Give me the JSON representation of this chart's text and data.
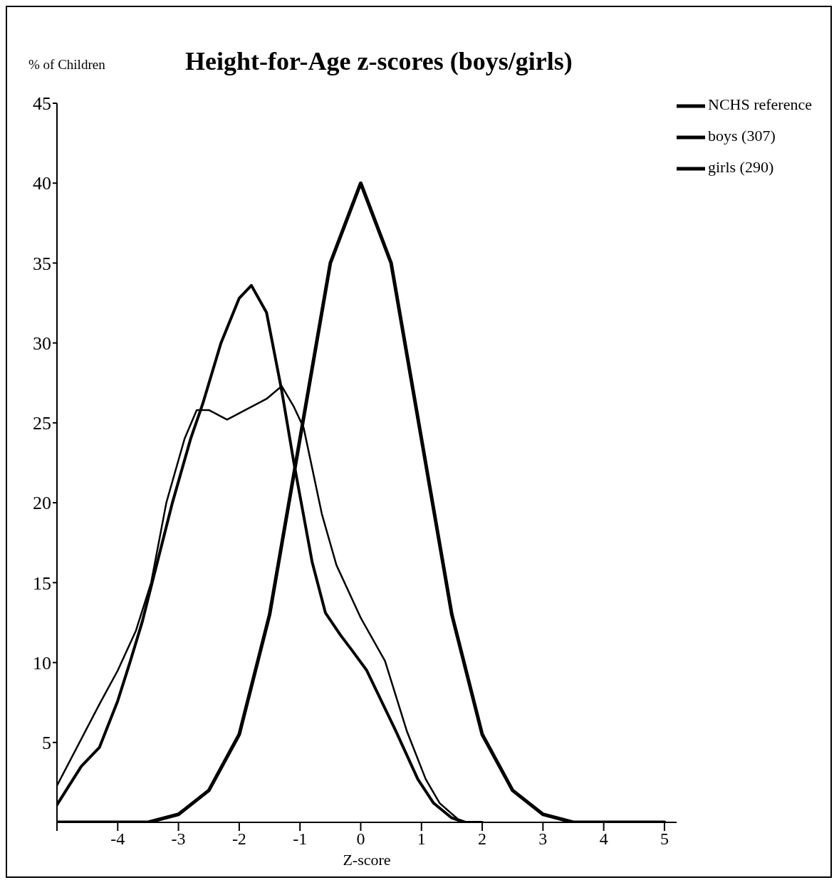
{
  "chart_data": {
    "type": "line",
    "title": "Height-for-Age z-scores (boys/girls)",
    "ylabel": "% of Children",
    "xlabel": "Z-score",
    "xlim": [
      -5,
      5.2
    ],
    "xticks": [
      {
        "value": -5,
        "label": null
      },
      -4,
      -3,
      -2,
      -1,
      0,
      1,
      2,
      3,
      4,
      5
    ],
    "ylim": [
      0,
      45
    ],
    "yticks": [
      5,
      10,
      15,
      20,
      25,
      30,
      35,
      40,
      45
    ],
    "legend": "top right",
    "grid": false,
    "marker": "none",
    "line_style": "solid",
    "series": [
      {
        "name": "NCHS reference",
        "color": "#000000",
        "x": [
          -5,
          -4.5,
          -4,
          -3.5,
          -3,
          -2.5,
          -2,
          -1.5,
          -1,
          -0.5,
          0,
          0.5,
          1,
          1.5,
          2,
          2.5,
          3,
          3.5,
          4,
          4.5,
          5
        ],
        "values": [
          0,
          0,
          0,
          0,
          0.5,
          2,
          5.5,
          13,
          24,
          35,
          40,
          35,
          24,
          13,
          5.5,
          2,
          0.5,
          0,
          0,
          0,
          0
        ]
      },
      {
        "name": "boys (307)",
        "color": "#000000",
        "x": [
          -5,
          -4.6,
          -4.3,
          -4,
          -3.8,
          -3.6,
          -3.4,
          -3.1,
          -2.8,
          -2.6,
          -2.3,
          -2,
          -1.8,
          -1.55,
          -1.3,
          -1.1,
          -0.8,
          -0.58,
          -0.33,
          -0.15,
          0.1,
          0.58,
          0.94,
          1.2,
          1.49,
          1.7,
          2
        ],
        "values": [
          1.1,
          3.5,
          4.7,
          7.6,
          10,
          12.5,
          15.5,
          20,
          24,
          26.2,
          30,
          32.8,
          33.6,
          31.9,
          27,
          22.5,
          16.3,
          13.1,
          11.7,
          10.8,
          9.5,
          5.7,
          2.7,
          1.2,
          0.3,
          0,
          0
        ]
      },
      {
        "name": "girls (290)",
        "color": "#000000",
        "x": [
          -5,
          -4.3,
          -4,
          -3.7,
          -3.45,
          -3.2,
          -2.9,
          -2.7,
          -2.5,
          -2.2,
          -1.8,
          -1.55,
          -1.3,
          -1.1,
          -0.94,
          -0.64,
          -0.4,
          0,
          0.4,
          0.76,
          1.07,
          1.3,
          1.6,
          1.75,
          2
        ],
        "values": [
          2.3,
          7.4,
          9.5,
          12,
          15,
          20,
          24,
          25.8,
          25.8,
          25.2,
          26,
          26.5,
          27.3,
          26,
          24.7,
          19.3,
          16.1,
          12.8,
          10.1,
          5.7,
          2.7,
          1.2,
          0.2,
          0,
          0
        ]
      }
    ]
  }
}
